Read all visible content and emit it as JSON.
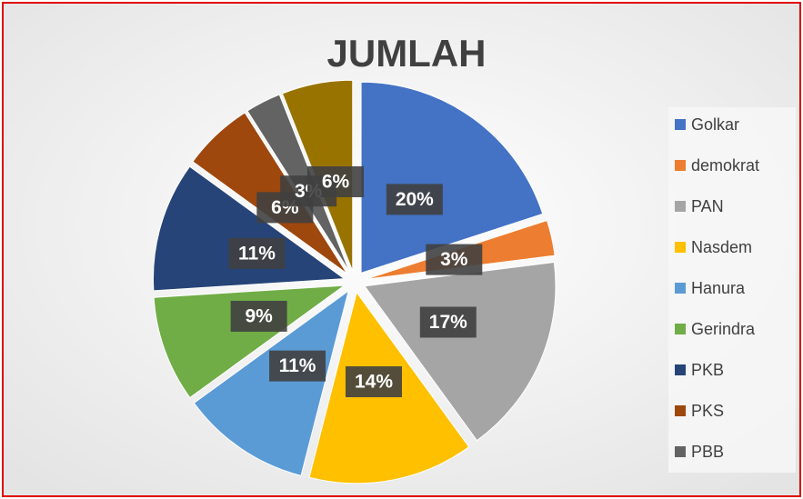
{
  "chart_data": {
    "type": "pie",
    "title": "JUMLAH",
    "categories": [
      "Golkar",
      "demokrat",
      "PAN",
      "Nasdem",
      "Hanura",
      "Gerindra",
      "PKB",
      "PKS",
      "PBB",
      null
    ],
    "values": [
      20,
      3,
      17,
      14,
      11,
      9,
      11,
      6,
      3,
      6
    ],
    "value_labels": [
      "20%",
      "3%",
      "17%",
      "14%",
      "11%",
      "9%",
      "11%",
      "6%",
      "3%",
      "6%"
    ],
    "colors": [
      "#4472c4",
      "#ed7d31",
      "#a5a5a5",
      "#ffc000",
      "#5b9bd5",
      "#70ad47",
      "#264478",
      "#9e480e",
      "#636363",
      "#997300"
    ],
    "legend": "right"
  }
}
